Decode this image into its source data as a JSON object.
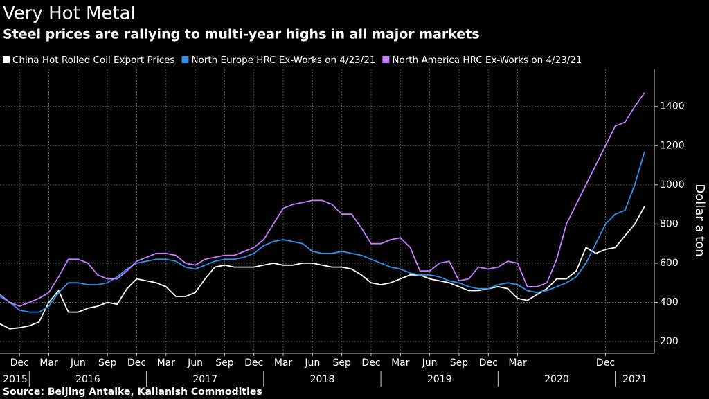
{
  "chart_data": {
    "type": "line",
    "title": "Very Hot Metal",
    "subtitle": "Steel prices are rallying to multi-year highs in all major markets",
    "y_label": "Dollar a ton",
    "source": "Source: Beijing Antaike, Kallanish Commodities",
    "x": [
      "2015-10",
      "2015-11",
      "2015-12",
      "2016-01",
      "2016-02",
      "2016-03",
      "2016-04",
      "2016-05",
      "2016-06",
      "2016-07",
      "2016-08",
      "2016-09",
      "2016-10",
      "2016-11",
      "2016-12",
      "2017-01",
      "2017-02",
      "2017-03",
      "2017-04",
      "2017-05",
      "2017-06",
      "2017-07",
      "2017-08",
      "2017-09",
      "2017-10",
      "2017-11",
      "2017-12",
      "2018-01",
      "2018-02",
      "2018-03",
      "2018-04",
      "2018-05",
      "2018-06",
      "2018-07",
      "2018-08",
      "2018-09",
      "2018-10",
      "2018-11",
      "2018-12",
      "2019-01",
      "2019-02",
      "2019-03",
      "2019-04",
      "2019-05",
      "2019-06",
      "2019-07",
      "2019-08",
      "2019-09",
      "2019-10",
      "2019-11",
      "2019-12",
      "2020-01",
      "2020-02",
      "2020-03",
      "2020-04",
      "2020-05",
      "2020-06",
      "2020-07",
      "2020-08",
      "2020-09",
      "2020-10",
      "2020-11",
      "2020-12",
      "2021-01",
      "2021-02",
      "2021-03",
      "2021-04"
    ],
    "series": [
      {
        "name": "China Hot Rolled Coil Export Prices",
        "color": "#ffffff",
        "values": [
          290,
          265,
          270,
          280,
          300,
          400,
          460,
          350,
          350,
          370,
          380,
          400,
          390,
          470,
          520,
          510,
          500,
          480,
          430,
          430,
          450,
          520,
          580,
          590,
          580,
          580,
          580,
          590,
          600,
          590,
          590,
          600,
          600,
          590,
          580,
          580,
          570,
          540,
          500,
          490,
          500,
          520,
          540,
          540,
          520,
          510,
          500,
          480,
          460,
          460,
          470,
          480,
          470,
          420,
          410,
          440,
          470,
          520,
          520,
          560,
          680,
          650,
          670,
          680,
          740,
          800,
          890
        ]
      },
      {
        "name": "North Europe HRC Ex-Works on 4/23/21",
        "color": "#2f8fe8",
        "values": [
          430,
          400,
          360,
          350,
          350,
          380,
          450,
          500,
          500,
          490,
          490,
          500,
          530,
          570,
          600,
          610,
          620,
          620,
          610,
          580,
          570,
          590,
          610,
          620,
          620,
          630,
          650,
          690,
          710,
          720,
          710,
          700,
          660,
          650,
          650,
          660,
          650,
          640,
          620,
          600,
          580,
          570,
          550,
          540,
          540,
          530,
          510,
          500,
          480,
          470,
          470,
          490,
          500,
          490,
          460,
          450,
          460,
          480,
          500,
          530,
          600,
          700,
          800,
          850,
          870,
          1000,
          1170
        ]
      },
      {
        "name": "North America HRC Ex-Works on 4/23/21",
        "color": "#c77dff",
        "values": [
          440,
          400,
          380,
          400,
          420,
          450,
          530,
          620,
          620,
          600,
          540,
          520,
          520,
          560,
          610,
          630,
          650,
          650,
          640,
          600,
          590,
          620,
          630,
          640,
          640,
          660,
          680,
          720,
          800,
          880,
          900,
          910,
          920,
          920,
          900,
          850,
          850,
          780,
          700,
          700,
          720,
          730,
          680,
          560,
          560,
          600,
          610,
          510,
          520,
          580,
          570,
          580,
          610,
          600,
          480,
          480,
          500,
          620,
          800,
          900,
          1000,
          1100,
          1200,
          1300,
          1320,
          1400,
          1470
        ]
      }
    ],
    "xlim": [
      "2015-10",
      "2021-05"
    ],
    "xticks": [
      {
        "value": "2015-12",
        "label": "Dec"
      },
      {
        "value": "2016-03",
        "label": "Mar"
      },
      {
        "value": "2016-06",
        "label": "Jun"
      },
      {
        "value": "2016-09",
        "label": "Sep"
      },
      {
        "value": "2016-12",
        "label": "Dec"
      },
      {
        "value": "2017-03",
        "label": "Mar"
      },
      {
        "value": "2017-06",
        "label": "Jun"
      },
      {
        "value": "2017-09",
        "label": "Sep"
      },
      {
        "value": "2017-12",
        "label": "Dec"
      },
      {
        "value": "2018-03",
        "label": "Mar"
      },
      {
        "value": "2018-06",
        "label": "Jun"
      },
      {
        "value": "2018-09",
        "label": "Sep"
      },
      {
        "value": "2018-12",
        "label": "Dec"
      },
      {
        "value": "2019-03",
        "label": "Mar"
      },
      {
        "value": "2019-06",
        "label": "Jun"
      },
      {
        "value": "2019-09",
        "label": "Sep"
      },
      {
        "value": "2019-12",
        "label": "Dec"
      },
      {
        "value": "2020-03",
        "label": "Mar"
      },
      {
        "value": "2020-12",
        "label": "Dec"
      }
    ],
    "years": [
      "2015",
      "2016",
      "2017",
      "2018",
      "2019",
      "2020",
      "2021"
    ],
    "ylim": [
      140,
      1590
    ],
    "yticks": [
      200,
      400,
      600,
      800,
      1000,
      1200,
      1400
    ],
    "grid": true
  }
}
